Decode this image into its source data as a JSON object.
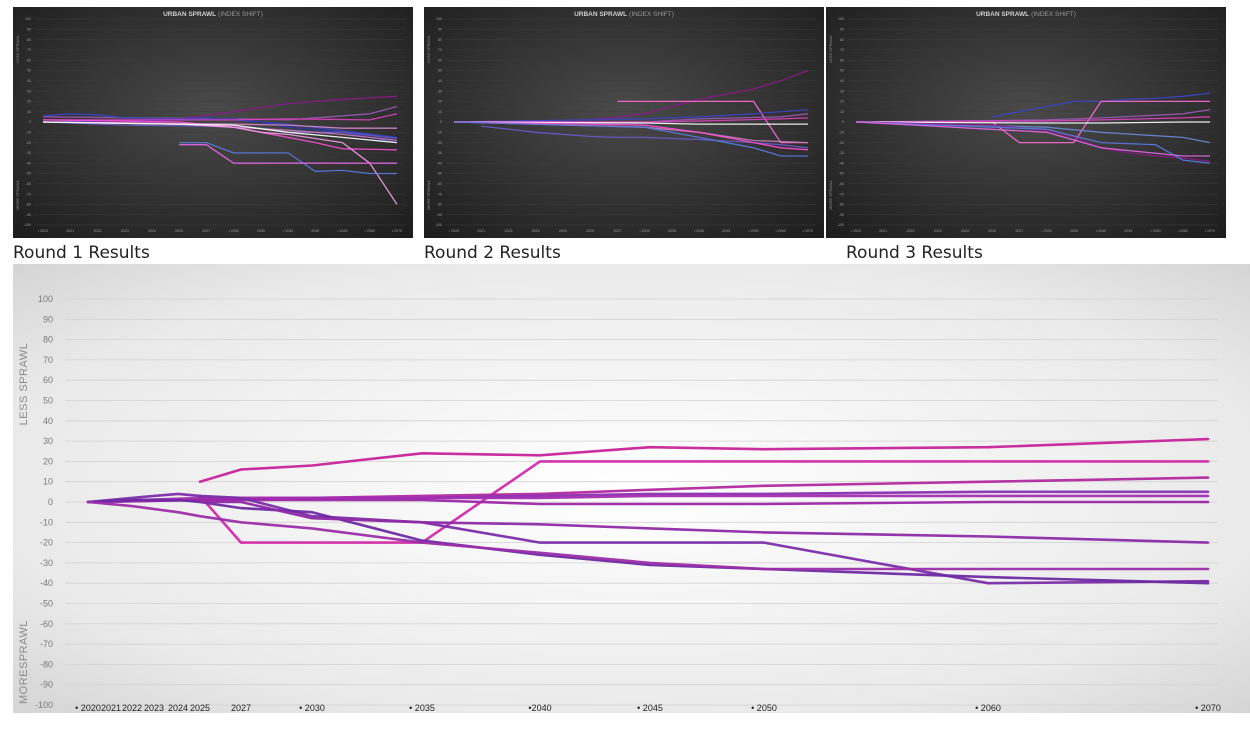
{
  "small_charts": [
    {
      "title_main": "URBAN SPRAWL",
      "title_sub": "(INDEX SHIFT)",
      "caption": "Round 1 Results",
      "y_label_top": "LESS SPRAWL",
      "y_label_bottom": "MORE SPRAWL",
      "series": [
        {
          "color": "#8a1a8a",
          "x": [
            2024,
            2025,
            2030,
            2035,
            2040,
            2050,
            2070
          ],
          "y": [
            0,
            3,
            10,
            14,
            18,
            22,
            25
          ]
        },
        {
          "color": "#9b59b6",
          "x": [
            2020,
            2030,
            2040,
            2060,
            2070
          ],
          "y": [
            5,
            3,
            2,
            8,
            15
          ]
        },
        {
          "color": "#3b45c4",
          "x": [
            2020,
            2021,
            2022,
            2023,
            2025,
            2027,
            2030,
            2040,
            2070
          ],
          "y": [
            6,
            8,
            7,
            4,
            3,
            4,
            2,
            -2,
            -15
          ]
        },
        {
          "color": "#2a36b0",
          "x": [
            2020,
            2025,
            2030,
            2035,
            2040,
            2050,
            2070
          ],
          "y": [
            0,
            2,
            3,
            0,
            -5,
            -10,
            -20
          ]
        },
        {
          "color": "#e040c0",
          "x": [
            2020,
            2030,
            2040,
            2060,
            2070
          ],
          "y": [
            2,
            2,
            3,
            2,
            8
          ]
        },
        {
          "color": "#6a5acd",
          "x": [
            2020,
            2023,
            2027,
            2030,
            2035,
            2040,
            2050,
            2060,
            2070
          ],
          "y": [
            0,
            -3,
            -4,
            -5,
            -6,
            -10,
            -10,
            -13,
            -16
          ]
        },
        {
          "color": "#c77dbb",
          "x": [
            2020,
            2025,
            2030,
            2040,
            2050,
            2060,
            2070
          ],
          "y": [
            0,
            -2,
            -5,
            -8,
            -12,
            -15,
            -18
          ]
        },
        {
          "color": "#ff4fd8",
          "x": [
            2020,
            2025,
            2030,
            2035,
            2040,
            2045,
            2050,
            2070
          ],
          "y": [
            2,
            0,
            -5,
            -10,
            -15,
            -20,
            -26,
            -27
          ]
        },
        {
          "color": "#d58ad0",
          "x": [
            2020,
            2030,
            2040,
            2050,
            2070
          ],
          "y": [
            0,
            -2,
            -3,
            -6,
            -6
          ]
        },
        {
          "color": "#f2a0e6",
          "x": [
            2020,
            2025,
            2030,
            2035,
            2040,
            2050,
            2060,
            2070
          ],
          "y": [
            0,
            -2,
            -5,
            -10,
            -12,
            -20,
            -40,
            -80
          ]
        },
        {
          "color": "#ffffff",
          "x": [
            2020,
            2030,
            2040,
            2050,
            2070
          ],
          "y": [
            0,
            -3,
            -10,
            -15,
            -20
          ]
        },
        {
          "color": "#5a7ae0",
          "x": [
            2025,
            2027,
            2030,
            2040,
            2045,
            2050,
            2060,
            2070
          ],
          "y": [
            -20,
            -20,
            -30,
            -30,
            -48,
            -47,
            -50,
            -50
          ]
        },
        {
          "color": "#e867e8",
          "x": [
            2025,
            2027,
            2030,
            2040,
            2070
          ],
          "y": [
            -22,
            -22,
            -40,
            -40,
            -40
          ]
        }
      ]
    },
    {
      "title_main": "URBAN SPRAWL",
      "title_sub": "(INDEX SHIFT)",
      "caption": "Round 2 Results",
      "y_label_top": "LESS SPRAWL",
      "y_label_bottom": "MORE SPRAWL",
      "series": [
        {
          "color": "#8a1a8a",
          "x": [
            2020,
            2025,
            2030,
            2035,
            2040,
            2050,
            2060,
            2070
          ],
          "y": [
            0,
            2,
            8,
            15,
            22,
            32,
            40,
            50
          ]
        },
        {
          "color": "#ff6ad5",
          "x": [
            2027,
            2030,
            2040,
            2050,
            2060,
            2070
          ],
          "y": [
            20,
            20,
            20,
            20,
            -20,
            -20
          ]
        },
        {
          "color": "#3b45c4",
          "x": [
            2020,
            2030,
            2040,
            2050,
            2070
          ],
          "y": [
            0,
            3,
            5,
            8,
            12
          ]
        },
        {
          "color": "#9b59b6",
          "x": [
            2020,
            2030,
            2040,
            2060,
            2070
          ],
          "y": [
            0,
            0,
            3,
            5,
            8
          ]
        },
        {
          "color": "#e040c0",
          "x": [
            2020,
            2030,
            2040,
            2060,
            2070
          ],
          "y": [
            0,
            0,
            1,
            3,
            4
          ]
        },
        {
          "color": "#ffffff",
          "x": [
            2020,
            2030,
            2040,
            2060,
            2070
          ],
          "y": [
            0,
            -1,
            -2,
            -2,
            -2
          ]
        },
        {
          "color": "#c77dbb",
          "x": [
            2020,
            2030,
            2040,
            2050,
            2070
          ],
          "y": [
            0,
            -5,
            -10,
            -18,
            -20
          ]
        },
        {
          "color": "#6a5acd",
          "x": [
            2021,
            2023,
            2025,
            2027,
            2030,
            2040,
            2050,
            2060,
            2070
          ],
          "y": [
            -4,
            -10,
            -14,
            -15,
            -15,
            -17,
            -20,
            -22,
            -25
          ]
        },
        {
          "color": "#ff4fd8",
          "x": [
            2020,
            2030,
            2040,
            2050,
            2060,
            2070
          ],
          "y": [
            0,
            -3,
            -10,
            -20,
            -25,
            -27
          ]
        },
        {
          "color": "#5a7ae0",
          "x": [
            2020,
            2030,
            2040,
            2050,
            2060,
            2070
          ],
          "y": [
            0,
            -5,
            -15,
            -25,
            -33,
            -33
          ]
        }
      ]
    },
    {
      "title_main": "URBAN SPRAWL",
      "title_sub": "(INDEX SHIFT)",
      "caption": "Round 3 Results",
      "y_label_top": "LESS SPRAWL",
      "y_label_bottom": "MORE SPRAWL",
      "series": [
        {
          "color": "#3b45c4",
          "x": [
            2025,
            2027,
            2030,
            2035,
            2040,
            2045,
            2050,
            2060,
            2070
          ],
          "y": [
            5,
            10,
            15,
            20,
            20,
            22,
            23,
            25,
            28
          ]
        },
        {
          "color": "#ff6ad5",
          "x": [
            2035,
            2040,
            2045,
            2050,
            2060,
            2070
          ],
          "y": [
            -20,
            20,
            20,
            20,
            20,
            20
          ]
        },
        {
          "color": "#ff6ad5",
          "x": [
            2025,
            2027,
            2030,
            2035
          ],
          "y": [
            0,
            -20,
            -20,
            -20
          ]
        },
        {
          "color": "#9b59b6",
          "x": [
            2020,
            2030,
            2040,
            2060,
            2070
          ],
          "y": [
            0,
            2,
            4,
            8,
            12
          ]
        },
        {
          "color": "#e040c0",
          "x": [
            2020,
            2030,
            2040,
            2060,
            2070
          ],
          "y": [
            0,
            1,
            2,
            4,
            5
          ]
        },
        {
          "color": "#ffffff",
          "x": [
            2020,
            2030,
            2040,
            2060,
            2070
          ],
          "y": [
            0,
            -1,
            -1,
            0,
            0
          ]
        },
        {
          "color": "#6a8ad5",
          "x": [
            2020,
            2030,
            2040,
            2060,
            2070
          ],
          "y": [
            0,
            -5,
            -10,
            -15,
            -20
          ]
        },
        {
          "color": "#8a1a8a",
          "x": [
            2020,
            2025,
            2030,
            2035,
            2040,
            2045,
            2050,
            2060,
            2070
          ],
          "y": [
            0,
            -3,
            -8,
            -15,
            -25,
            -30,
            -33,
            -35,
            -38
          ]
        },
        {
          "color": "#5a7ae0",
          "x": [
            2020,
            2030,
            2040,
            2050,
            2060,
            2070
          ],
          "y": [
            0,
            -7,
            -20,
            -22,
            -37,
            -40
          ]
        },
        {
          "color": "#e867e8",
          "x": [
            2020,
            2030,
            2040,
            2060,
            2070
          ],
          "y": [
            0,
            -10,
            -25,
            -33,
            -33
          ]
        }
      ]
    }
  ],
  "chart_data": {
    "type": "line",
    "title": "",
    "ylim": [
      -100,
      100
    ],
    "y_ticks": [
      100,
      90,
      80,
      70,
      60,
      50,
      40,
      30,
      20,
      10,
      0,
      -10,
      -20,
      -30,
      -40,
      -50,
      -60,
      -70,
      -80,
      -90,
      -100
    ],
    "y_label_top": "LESS  SPRAWL",
    "y_label_bottom": "MORESPRAWL",
    "x_ticks": [
      {
        "value": 2020,
        "label": "• 2020"
      },
      {
        "value": 2021,
        "label": "2021"
      },
      {
        "value": 2022,
        "label": "2022"
      },
      {
        "value": 2023,
        "label": "2023"
      },
      {
        "value": 2024,
        "label": "2024"
      },
      {
        "value": 2025,
        "label": "2025"
      },
      {
        "value": 2027,
        "label": "2027"
      },
      {
        "value": 2030,
        "label": "• 2030"
      },
      {
        "value": 2035,
        "label": "• 2035"
      },
      {
        "value": 2040,
        "label": "•2040"
      },
      {
        "value": 2045,
        "label": "• 2045"
      },
      {
        "value": 2050,
        "label": "• 2050"
      },
      {
        "value": 2060,
        "label": "• 2060"
      },
      {
        "value": 2070,
        "label": "• 2070"
      }
    ],
    "grid": true,
    "series": [
      {
        "color": "#c8239a",
        "x": [
          2025,
          2027,
          2030,
          2035,
          2040,
          2045,
          2050,
          2060,
          2070
        ],
        "y": [
          10,
          16,
          18,
          24,
          23,
          27,
          26,
          27,
          31
        ]
      },
      {
        "color": "#d22aa8",
        "x": [
          2025,
          2027,
          2035,
          2040,
          2045,
          2050,
          2060,
          2070
        ],
        "y": [
          3,
          -20,
          -20,
          20,
          20,
          20,
          20,
          20
        ]
      },
      {
        "color": "#b22aa0",
        "x": [
          2025,
          2027,
          2030,
          2035,
          2040,
          2045,
          2050,
          2060,
          2070
        ],
        "y": [
          2,
          2,
          2,
          3,
          4,
          6,
          8,
          10,
          12
        ]
      },
      {
        "color": "#8a2fb0",
        "x": [
          2020,
          2025,
          2030,
          2035,
          2040,
          2045,
          2050,
          2060,
          2070
        ],
        "y": [
          0,
          1,
          2,
          2,
          3,
          4,
          4,
          5,
          5
        ]
      },
      {
        "color": "#a42fb2",
        "x": [
          2020,
          2025,
          2030,
          2035,
          2040,
          2045,
          2050,
          2060,
          2070
        ],
        "y": [
          0,
          2,
          2,
          2,
          2,
          3,
          3,
          3,
          3
        ]
      },
      {
        "color": "#9c27a8",
        "x": [
          2020,
          2025,
          2027,
          2030,
          2035,
          2040,
          2045,
          2050,
          2060,
          2070
        ],
        "y": [
          0,
          1,
          1,
          1,
          1,
          -1,
          -1,
          -1,
          0,
          0
        ]
      },
      {
        "color": "#7a2ea8",
        "x": [
          2020,
          2022,
          2023,
          2024,
          2025,
          2027,
          2030,
          2035,
          2040,
          2045,
          2050,
          2060,
          2070
        ],
        "y": [
          0,
          2,
          3,
          4,
          3,
          2,
          -7,
          -10,
          -20,
          -20,
          -20,
          -40,
          -39
        ]
      },
      {
        "color": "#6d2aa3",
        "x": [
          2020,
          2022,
          2024,
          2025,
          2027,
          2030,
          2035,
          2040,
          2045,
          2050,
          2060,
          2070
        ],
        "y": [
          0,
          1,
          1,
          0,
          -3,
          -5,
          -19,
          -26,
          -31,
          -33,
          -37,
          -40
        ]
      },
      {
        "color": "#9b2fa8",
        "x": [
          2020,
          2022,
          2024,
          2025,
          2027,
          2030,
          2035,
          2040,
          2045,
          2050,
          2060,
          2070
        ],
        "y": [
          0,
          -2,
          -5,
          -7,
          -10,
          -13,
          -20,
          -25,
          -30,
          -33,
          -33,
          -33
        ]
      },
      {
        "color": "#8e2aa6",
        "x": [
          2025,
          2027,
          2030,
          2035,
          2040,
          2045,
          2050,
          2060,
          2070
        ],
        "y": [
          0,
          0,
          -8,
          -10,
          -11,
          -13,
          -15,
          -17,
          -20
        ]
      }
    ]
  }
}
